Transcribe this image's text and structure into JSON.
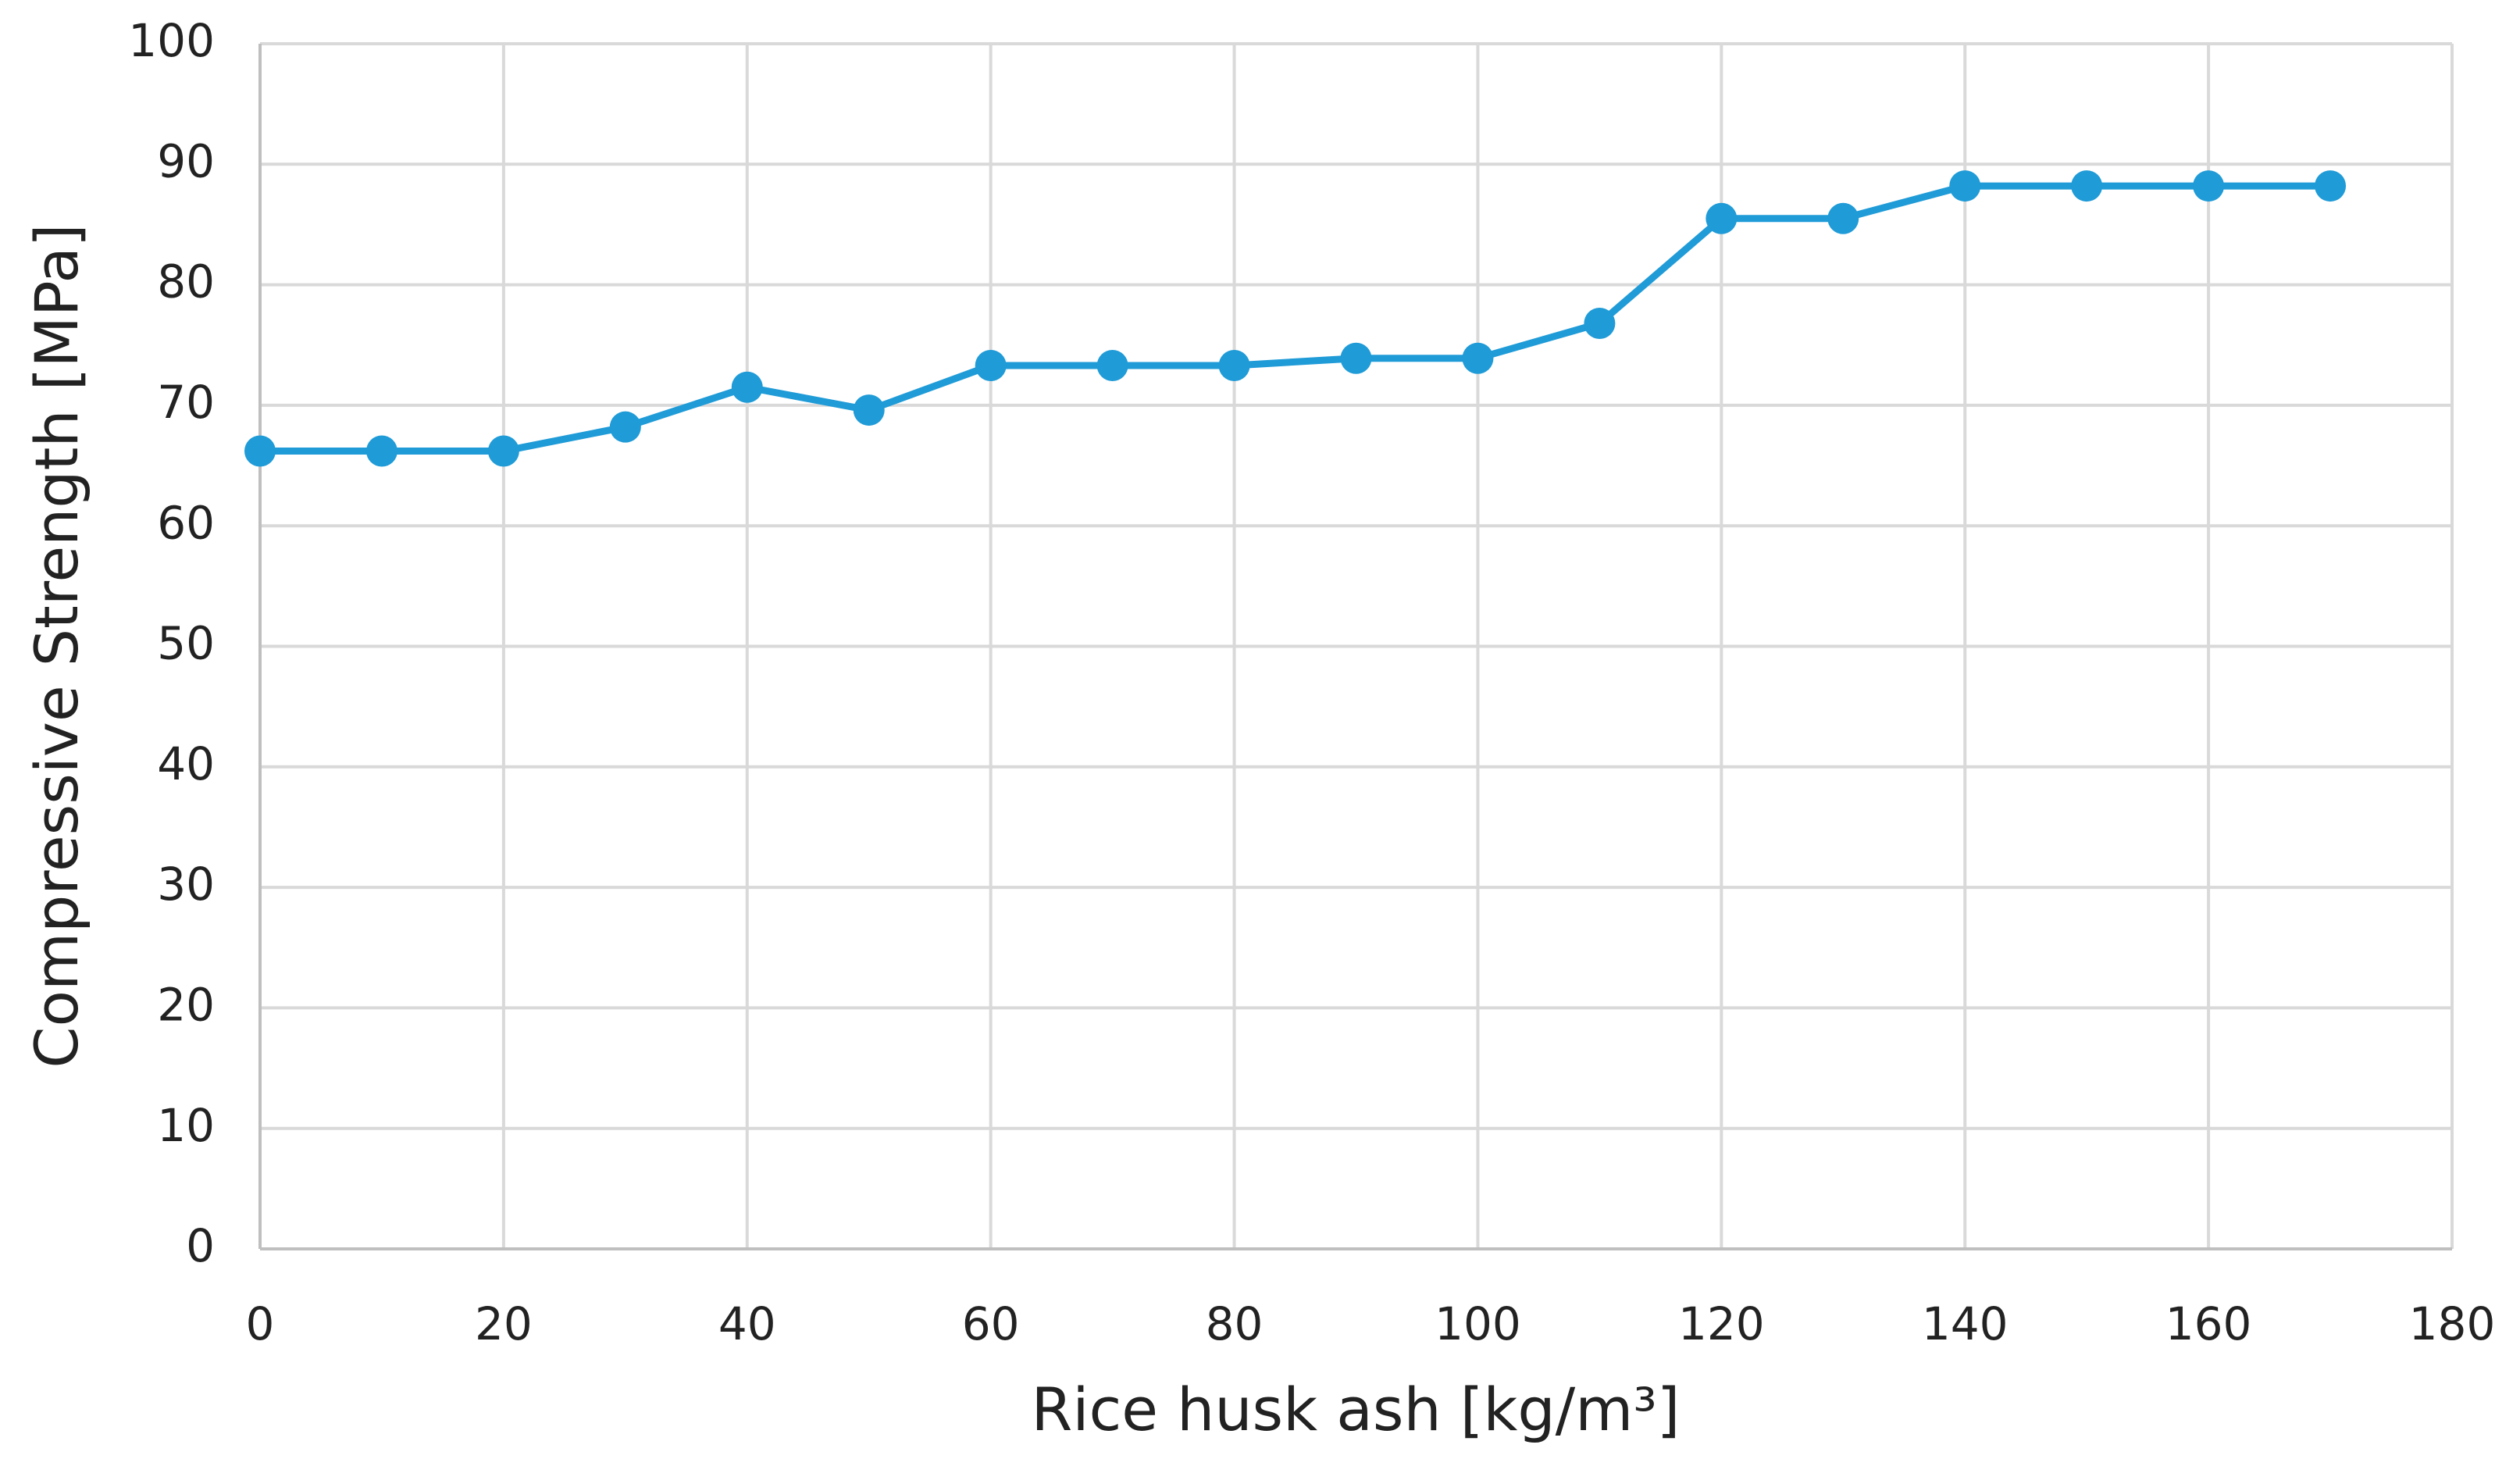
{
  "chart_data": {
    "type": "line",
    "x_label": "Rice husk ash [kg/m³]",
    "y_label": "Compressive Strength [MPa]",
    "x": [
      0,
      10,
      20,
      30,
      40,
      50,
      60,
      70,
      80,
      90,
      100,
      110,
      120,
      130,
      140,
      150,
      160,
      170
    ],
    "series": [
      {
        "color": "#1f9bd7",
        "values": [
          66.2,
          66.2,
          66.2,
          68.2,
          71.5,
          69.6,
          73.3,
          73.3,
          73.3,
          73.9,
          73.9,
          76.8,
          85.5,
          85.5,
          88.2,
          88.2,
          88.2,
          88.2
        ]
      }
    ],
    "xlim": [
      0,
      180
    ],
    "xticks": [
      0,
      20,
      40,
      60,
      80,
      100,
      120,
      140,
      160,
      180
    ],
    "ylim": [
      0,
      100
    ],
    "yticks": [
      0,
      10,
      20,
      30,
      40,
      50,
      60,
      70,
      80,
      90,
      100
    ],
    "grid": true
  }
}
